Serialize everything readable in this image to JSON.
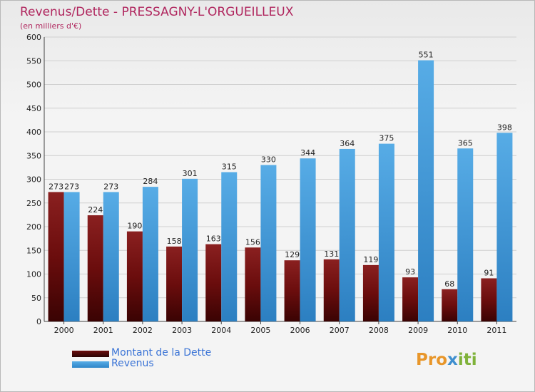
{
  "title": "Revenus/Dette - PRESSAGNY-L'ORGUEILLEUX",
  "subtitle": "(en milliers d'€)",
  "colors": {
    "debt": "#6b0d0d",
    "revenue": "#57ace6",
    "title": "#b0265e",
    "legend_text": "#3b74d6"
  },
  "chart_data": {
    "type": "bar",
    "categories": [
      "2000",
      "2001",
      "2002",
      "2003",
      "2004",
      "2005",
      "2006",
      "2007",
      "2008",
      "2009",
      "2010",
      "2011"
    ],
    "series": [
      {
        "name": "Montant de la Dette",
        "values": [
          273,
          224,
          190,
          158,
          163,
          156,
          129,
          131,
          119,
          93,
          68,
          91
        ]
      },
      {
        "name": "Revenus",
        "values": [
          273,
          273,
          284,
          301,
          315,
          330,
          344,
          364,
          375,
          551,
          365,
          398
        ]
      }
    ],
    "ylim": [
      0,
      600
    ],
    "yticks": [
      0,
      50,
      100,
      150,
      200,
      250,
      300,
      350,
      400,
      450,
      500,
      550,
      600
    ],
    "grid": true,
    "legend_position": "bottom-left"
  },
  "legend": {
    "debt_label": "Montant de la Dette",
    "revenue_label": "Revenus"
  },
  "logo": {
    "part1": "Pro",
    "part2": "x",
    "part3": "iti"
  }
}
